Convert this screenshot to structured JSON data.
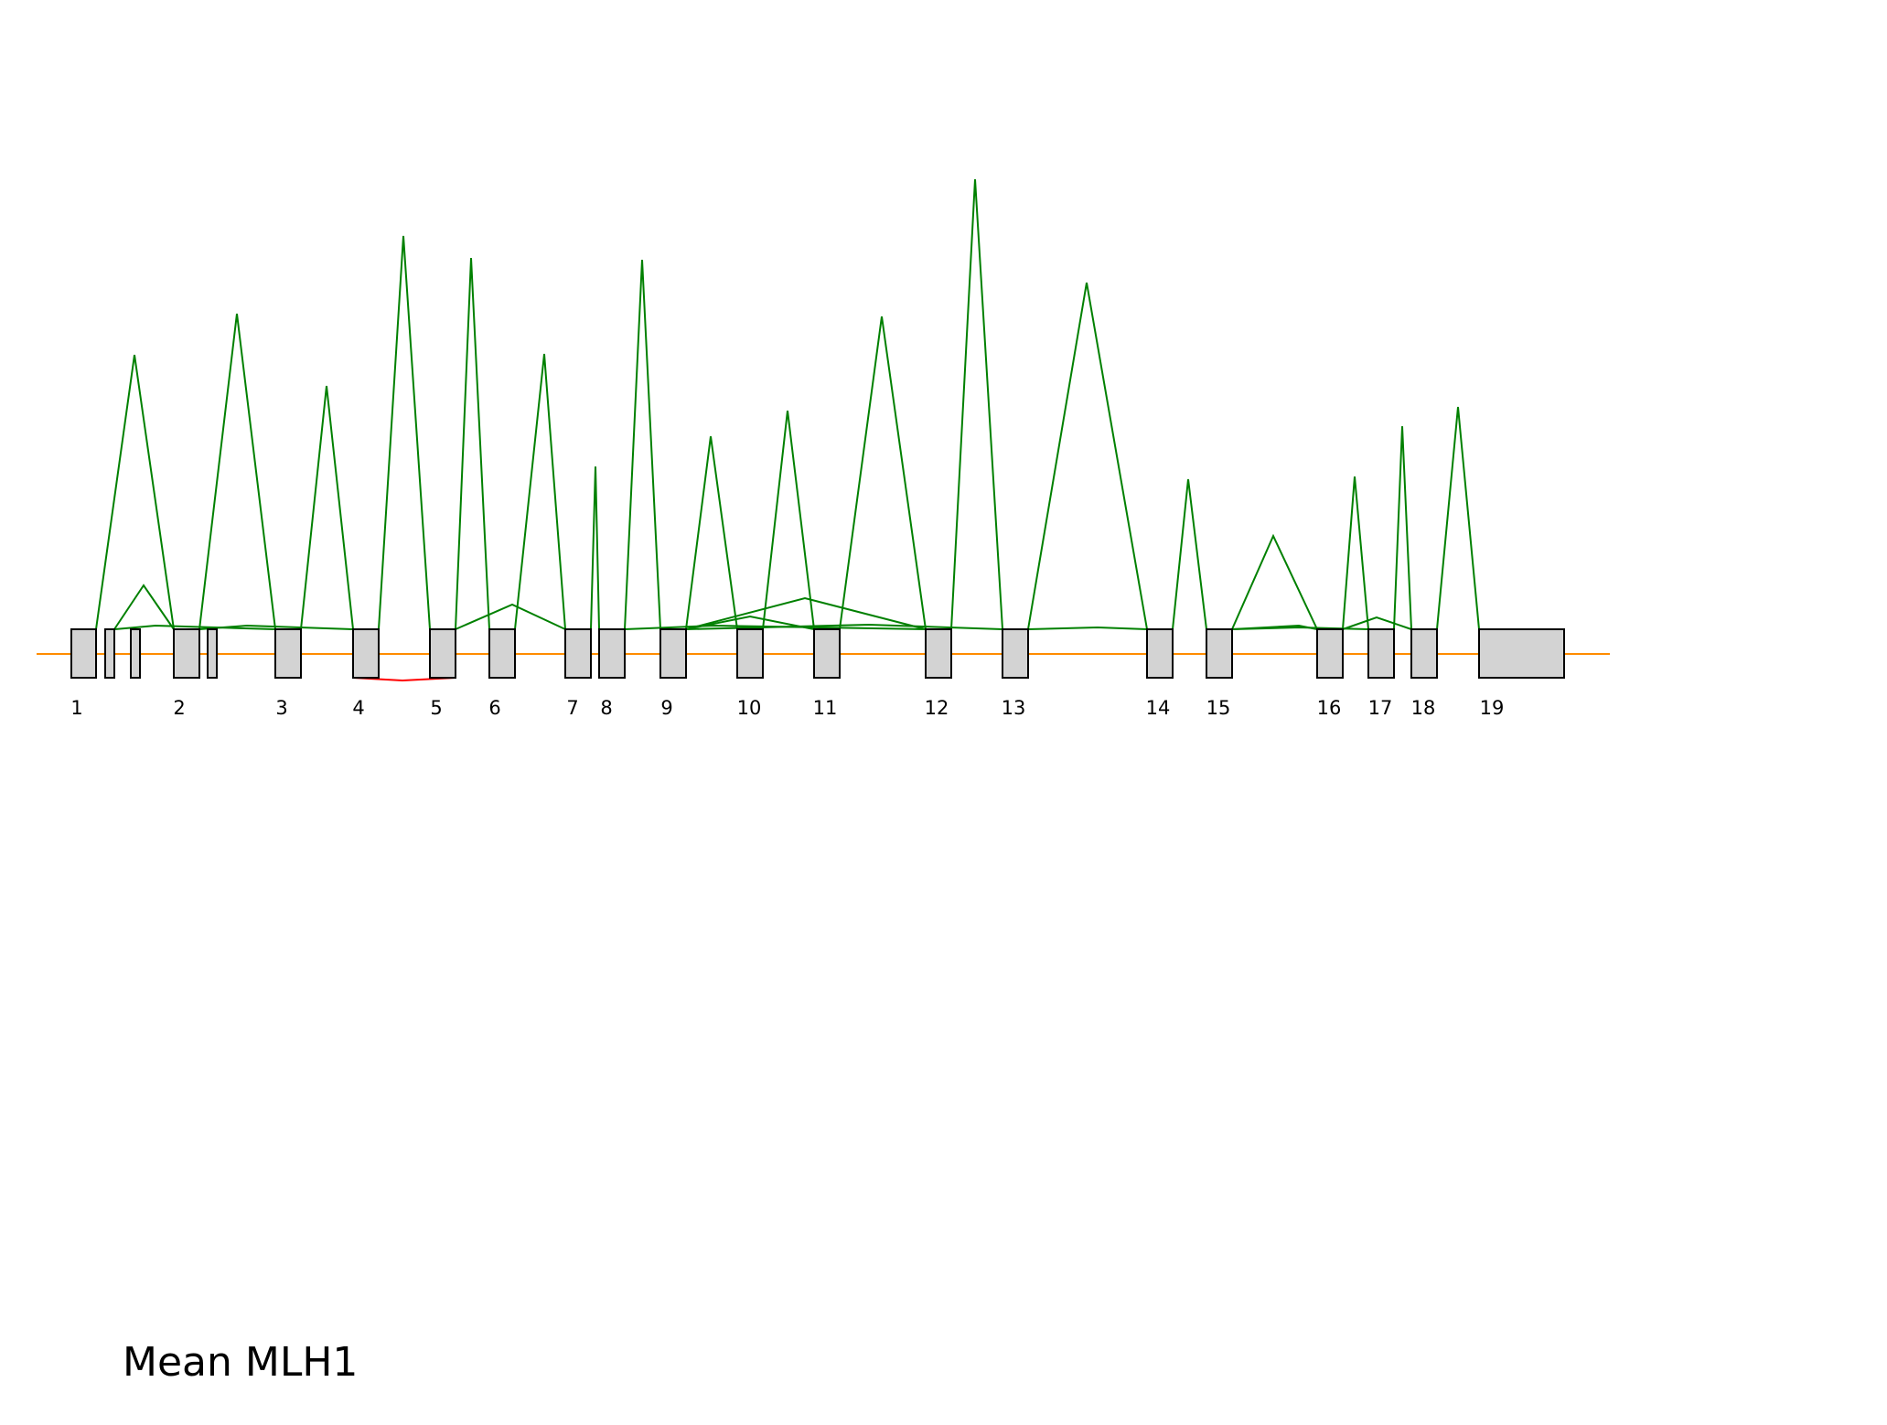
{
  "title": "Mean MLH1",
  "colors": {
    "exon_fill": "#d3d3d3",
    "exon_stroke": "#000000",
    "backbone": "#ff8c00",
    "junction_up": "#008000",
    "junction_down": "#ff0000",
    "background": "#ffffff"
  },
  "exon_labels": [
    "1",
    "2",
    "3",
    "4",
    "5",
    "6",
    "7",
    "8",
    "9",
    "10",
    "11",
    "12",
    "13",
    "14",
    "15",
    "16",
    "17",
    "18",
    "19"
  ]
}
